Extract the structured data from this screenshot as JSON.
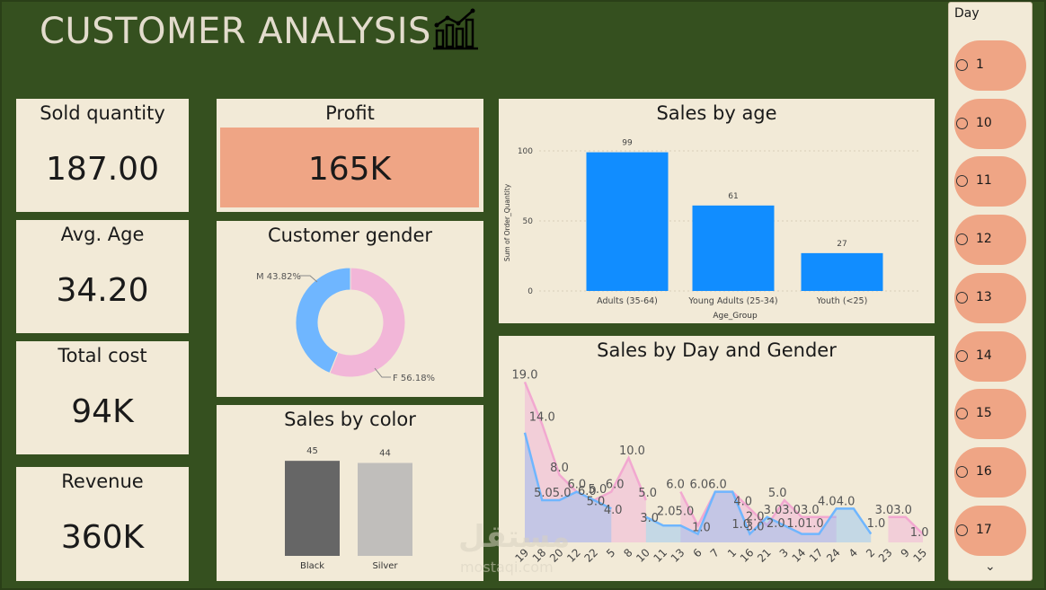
{
  "header": {
    "title": "CUSTOMER ANALYSIS",
    "icon": "bar-chart-icon"
  },
  "kpis": {
    "sold_quantity": {
      "label": "Sold quantity",
      "value": "187.00"
    },
    "avg_age": {
      "label": "Avg. Age",
      "value": "34.20"
    },
    "total_cost": {
      "label": "Total cost",
      "value": "94K"
    },
    "revenue": {
      "label": "Revenue",
      "value": "360K"
    },
    "profit": {
      "label": "Profit",
      "value": "165K"
    }
  },
  "colors": {
    "background": "#35501F",
    "card": "#F2EAD7",
    "accent": "#EFA585",
    "bar_blue": "#118DFF",
    "female": "#F2B6D8",
    "male": "#6FB6FF",
    "black": "#666666",
    "silver": "#C0BEBB"
  },
  "slicer": {
    "title": "Day",
    "items": [
      "1",
      "10",
      "11",
      "12",
      "13",
      "14",
      "15",
      "16",
      "17"
    ]
  },
  "watermark": {
    "arabic": "مستقل",
    "latin": "mostaqi.com"
  },
  "chart_data": [
    {
      "type": "pie",
      "title": "Customer gender",
      "slices": [
        {
          "name": "M",
          "label": "M 43.82%",
          "value": 43.82
        },
        {
          "name": "F",
          "label": "F 56.18%",
          "value": 56.18
        }
      ]
    },
    {
      "type": "bar",
      "title": "Sales by color",
      "categories": [
        "Black",
        "Silver"
      ],
      "values": [
        45,
        44
      ],
      "ylim": [
        0,
        50
      ]
    },
    {
      "type": "bar",
      "title": "Sales by age",
      "categories": [
        "Adults (35-64)",
        "Young Adults (25-34)",
        "Youth (<25)"
      ],
      "values": [
        99,
        61,
        27
      ],
      "xlabel": "Age_Group",
      "ylabel": "Sum of Order_Quantity",
      "yticks": [
        "0",
        "50",
        "100"
      ],
      "ylim": [
        0,
        110
      ],
      "grid": true
    },
    {
      "type": "area",
      "title": "Sales by Day and Gender",
      "categories": [
        "19",
        "18",
        "20",
        "12",
        "22",
        "5",
        "8",
        "10",
        "11",
        "13",
        "6",
        "7",
        "1",
        "16",
        "21",
        "3",
        "14",
        "17",
        "24",
        "4",
        "2",
        "23",
        "9",
        "15"
      ],
      "ylim": [
        0,
        20
      ],
      "series": [
        {
          "name": "F",
          "values": [
            19,
            14,
            8,
            6,
            5,
            6,
            10,
            5,
            null,
            6,
            2,
            6,
            6,
            4,
            2,
            5,
            3,
            3,
            3,
            null,
            null,
            3,
            3,
            1
          ]
        },
        {
          "name": "M",
          "values": [
            13,
            5,
            5,
            6,
            5,
            4,
            null,
            3,
            2,
            2,
            1,
            6,
            6,
            1,
            3,
            2,
            1,
            1,
            4,
            4,
            1,
            null,
            null,
            null
          ]
        }
      ],
      "labels": [
        {
          "text": "19.0",
          "i": 0,
          "v": 19
        },
        {
          "text": "14.0",
          "i": 1,
          "v": 14
        },
        {
          "text": "8.0",
          "i": 2,
          "v": 8
        },
        {
          "text": "5.05.0",
          "i": 1.6,
          "v": 5
        },
        {
          "text": "6.0",
          "i": 3,
          "v": 6
        },
        {
          "text": "6.0",
          "i": 3.6,
          "v": 5.2
        },
        {
          "text": "5.0",
          "i": 4.2,
          "v": 5.4
        },
        {
          "text": "6.0",
          "i": 5.2,
          "v": 6
        },
        {
          "text": "5.0",
          "i": 4.1,
          "v": 4.0
        },
        {
          "text": "4.0",
          "i": 5.1,
          "v": 3.0
        },
        {
          "text": "10.0",
          "i": 6.2,
          "v": 10
        },
        {
          "text": "5.0",
          "i": 7.1,
          "v": 5
        },
        {
          "text": "3.0",
          "i": 7.2,
          "v": 2.0
        },
        {
          "text": "6.0",
          "i": 8.7,
          "v": 6
        },
        {
          "text": "2.05.0",
          "i": 8.7,
          "v": 2.8
        },
        {
          "text": "1.0",
          "i": 10.2,
          "v": 0.9
        },
        {
          "text": "6.06.0",
          "i": 10.6,
          "v": 6
        },
        {
          "text": "4.0",
          "i": 12.6,
          "v": 4
        },
        {
          "text": "1.0",
          "i": 12.5,
          "v": 1.3
        },
        {
          "text": "2.0",
          "i": 13.3,
          "v": 2.2
        },
        {
          "text": "3.0",
          "i": 13.3,
          "v": 1.0
        },
        {
          "text": "5.0",
          "i": 14.6,
          "v": 5
        },
        {
          "text": "2.0",
          "i": 14.5,
          "v": 1.4
        },
        {
          "text": "3.03.03.0",
          "i": 15.4,
          "v": 3
        },
        {
          "text": "1.01.0",
          "i": 16.2,
          "v": 1.4
        },
        {
          "text": "4.04.0",
          "i": 18.0,
          "v": 4
        },
        {
          "text": "1.0",
          "i": 20.3,
          "v": 1.4
        },
        {
          "text": "3.03.0",
          "i": 21.3,
          "v": 3
        },
        {
          "text": "1.0",
          "i": 22.8,
          "v": 0.3
        }
      ]
    }
  ]
}
